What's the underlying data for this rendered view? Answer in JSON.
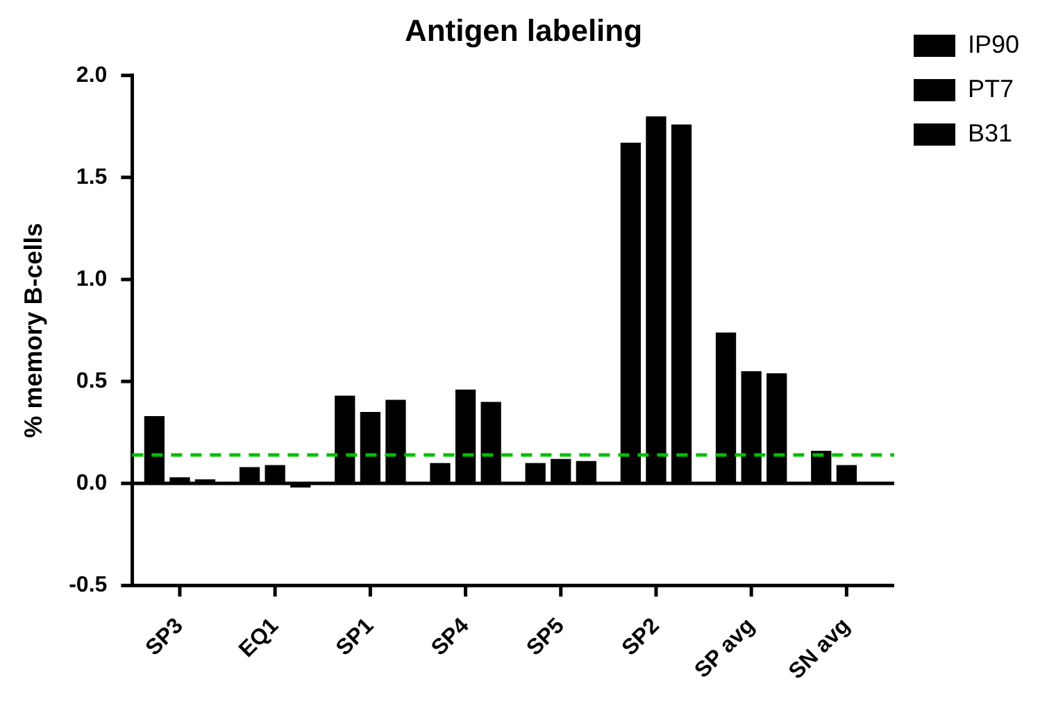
{
  "chart_data": {
    "type": "bar",
    "title": "Antigen labeling",
    "ylabel": "% memory B-cells",
    "categories": [
      "SP3",
      "EQ1",
      "SP1",
      "SP4",
      "SP5",
      "SP2",
      "SP avg",
      "SN avg"
    ],
    "series": [
      {
        "name": "IP90",
        "color": "#000000",
        "values": [
          0.33,
          0.08,
          0.43,
          0.1,
          0.1,
          1.67,
          0.74,
          0.16
        ]
      },
      {
        "name": "PT7",
        "color": "#000000",
        "values": [
          0.03,
          0.09,
          0.35,
          0.46,
          0.12,
          1.8,
          0.55,
          0.09
        ]
      },
      {
        "name": "B31",
        "color": "#000000",
        "values": [
          0.02,
          -0.02,
          0.41,
          0.4,
          0.11,
          1.76,
          0.54,
          null
        ]
      }
    ],
    "ylim": [
      -0.5,
      2.0
    ],
    "yticks": [
      {
        "value": -0.5,
        "label": "-0.5"
      },
      {
        "value": 0,
        "label": "0.0"
      },
      {
        "value": 0.5,
        "label": "0.5"
      },
      {
        "value": 1,
        "label": "1.0"
      },
      {
        "value": 1.5,
        "label": "1.5"
      },
      {
        "value": 2,
        "label": "2.0"
      }
    ],
    "ref_lines": [
      {
        "axis": "y",
        "value": 0,
        "color": "#000000",
        "line_style": "solid"
      },
      {
        "axis": "y",
        "value": 0.14,
        "color": "#00c000",
        "line_style": "dashed"
      }
    ],
    "grid": false,
    "legend": "top right"
  }
}
